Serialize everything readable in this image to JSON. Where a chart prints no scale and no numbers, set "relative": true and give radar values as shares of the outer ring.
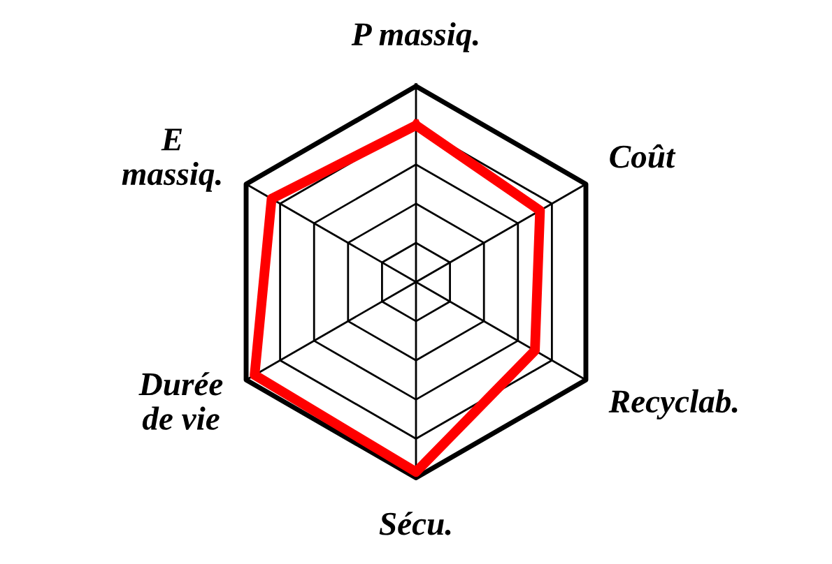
{
  "chart_data": {
    "type": "radar",
    "relative": true,
    "grid": true,
    "categories": [
      "P massiq.",
      "Coût",
      "Recyclab.",
      "Sécu.",
      "Durée\nde vie",
      "E\nmassiq."
    ],
    "series": [
      {
        "color": "#ff0000",
        "values": [
          0.8,
          0.73,
          0.7,
          0.97,
          0.95,
          0.85
        ]
      }
    ]
  }
}
